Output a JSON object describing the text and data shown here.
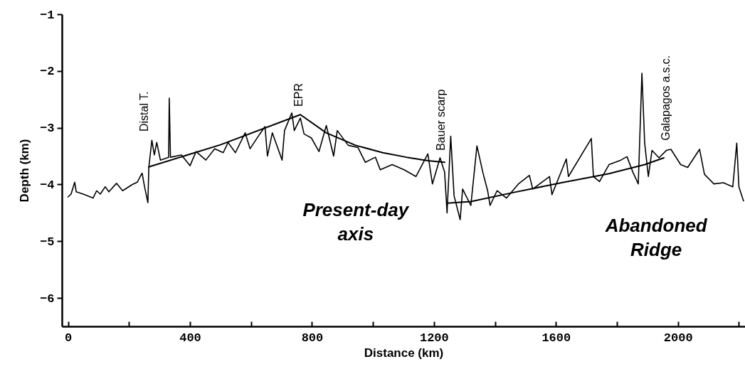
{
  "chart_data": {
    "type": "line",
    "xlabel": "Distance (km)",
    "ylabel": "Depth (km)",
    "xlim": [
      -20,
      2220
    ],
    "ylim": [
      -6.5,
      -1
    ],
    "xticks": [
      0,
      {
        "value": 200,
        "label": null
      },
      400,
      {
        "value": 600,
        "label": null
      },
      800,
      {
        "value": 1000,
        "label": null
      },
      1200,
      {
        "value": 1400,
        "label": null
      },
      1600,
      {
        "value": 1800,
        "label": null
      },
      2000,
      {
        "value": 2200,
        "label": null
      }
    ],
    "yticks": [
      -6,
      -5,
      -4,
      -3,
      -2,
      -1
    ],
    "series": [
      {
        "color": "#000000",
        "x": [
          0,
          10,
          22,
          27,
          50,
          82,
          94,
          106,
          122,
          134,
          159,
          179,
          211,
          227,
          243,
          251,
          262,
          265,
          275,
          283,
          291,
          303,
          330,
          332,
          336,
          372,
          400,
          420,
          452,
          481,
          509,
          525,
          549,
          581,
          597,
          629,
          646,
          654,
          670,
          702,
          710,
          734,
          742,
          762,
          774,
          798,
          823,
          847,
          871,
          883,
          919,
          951,
          975,
          1008,
          1024,
          1063,
          1102,
          1141,
          1180,
          1195,
          1220,
          1235,
          1243,
          1255,
          1266,
          1286,
          1294,
          1321,
          1341,
          1360,
          1376,
          1384,
          1407,
          1438,
          1477,
          1513,
          1524,
          1579,
          1587,
          1634,
          1641,
          1716,
          1723,
          1743,
          1774,
          1813,
          1833,
          1852,
          1870,
          1882,
          1891,
          1903,
          1915,
          1938,
          1962,
          1977,
          2009,
          2032,
          2071,
          2087,
          2118,
          2149,
          2180,
          2193,
          2200,
          2215
        ],
        "values": [
          -4.22,
          -4.17,
          -3.96,
          -4.13,
          -4.17,
          -4.24,
          -4.11,
          -4.17,
          -4.04,
          -4.13,
          -3.98,
          -4.11,
          -4.0,
          -3.96,
          -3.8,
          -4.04,
          -4.32,
          -3.7,
          -3.22,
          -3.48,
          -3.26,
          -3.57,
          -3.52,
          -2.48,
          -3.52,
          -3.48,
          -3.67,
          -3.42,
          -3.57,
          -3.37,
          -3.44,
          -3.26,
          -3.44,
          -3.09,
          -3.37,
          -3.11,
          -2.98,
          -3.5,
          -3.09,
          -3.57,
          -3.05,
          -2.74,
          -3.05,
          -2.83,
          -3.11,
          -3.18,
          -3.42,
          -2.96,
          -3.5,
          -3.05,
          -3.31,
          -3.35,
          -3.61,
          -3.52,
          -3.74,
          -3.65,
          -3.74,
          -3.86,
          -3.46,
          -3.99,
          -3.53,
          -3.78,
          -4.5,
          -3.15,
          -4.2,
          -4.62,
          -4.08,
          -4.37,
          -3.32,
          -3.78,
          -4.11,
          -4.37,
          -4.11,
          -4.24,
          -3.99,
          -3.84,
          -4.08,
          -3.86,
          -4.18,
          -3.55,
          -3.86,
          -3.19,
          -3.86,
          -3.95,
          -3.65,
          -3.57,
          -3.51,
          -3.78,
          -3.99,
          -2.04,
          -3.27,
          -3.86,
          -3.4,
          -3.53,
          -3.4,
          -3.38,
          -3.65,
          -3.7,
          -3.38,
          -3.82,
          -3.99,
          -3.97,
          -4.04,
          -3.27,
          -4.04,
          -4.29
        ]
      },
      {
        "color": "#000000",
        "x": [
          265,
          500,
          762,
          847,
          943,
          1032,
          1110,
          1180,
          1235
        ],
        "values": [
          -3.69,
          -3.3,
          -2.77,
          -3.09,
          -3.31,
          -3.44,
          -3.52,
          -3.58,
          -3.61
        ]
      },
      {
        "color": "#000000",
        "x": [
          1243,
          1321,
          1462,
          1618,
          1774,
          1891,
          1954
        ],
        "values": [
          -4.33,
          -4.3,
          -4.14,
          -3.97,
          -3.81,
          -3.65,
          -3.53
        ]
      }
    ],
    "annotations": [
      "Distal T.",
      "EPR",
      "Bauer scarp",
      "Galapagos a.s.c.",
      "Present-day\naxis",
      "Abandoned\nRidge"
    ]
  }
}
